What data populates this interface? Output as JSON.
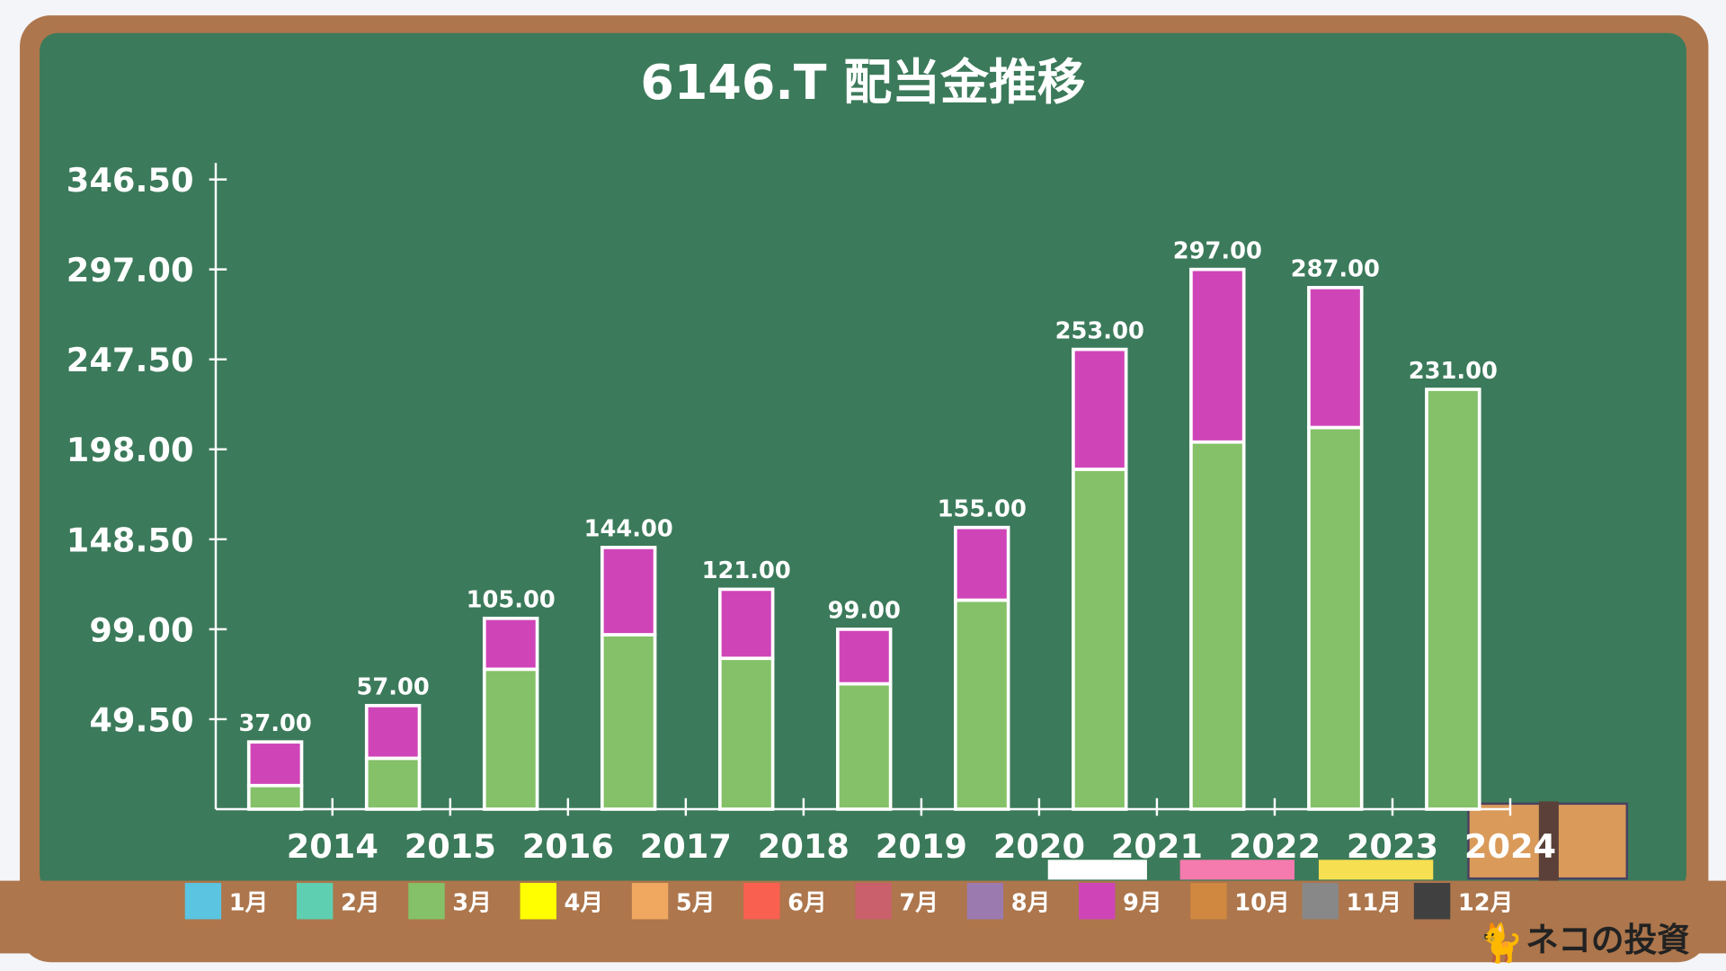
{
  "chart_data": {
    "type": "bar",
    "stacked": true,
    "title": "6146.T 配当金推移",
    "categories": [
      "2014",
      "2015",
      "2016",
      "2017",
      "2018",
      "2019",
      "2020",
      "2021",
      "2022",
      "2023",
      "2024"
    ],
    "series": [
      {
        "name": "3月",
        "color": "#84c168",
        "values": [
          13,
          28,
          77,
          96,
          83,
          69,
          115,
          187,
          202,
          210,
          231
        ]
      },
      {
        "name": "9月",
        "color": "#cf45b8",
        "values": [
          24,
          29,
          28,
          48,
          38,
          30,
          40,
          66,
          95,
          77,
          0
        ]
      }
    ],
    "totals": [
      "37.00",
      "57.00",
      "105.00",
      "144.00",
      "121.00",
      "99.00",
      "155.00",
      "253.00",
      "297.00",
      "287.00",
      "231.00"
    ],
    "yticks": [
      "49.50",
      "99.00",
      "148.50",
      "198.00",
      "247.50",
      "297.00",
      "346.50"
    ],
    "ylim": [
      0,
      346.5
    ],
    "legend_position": "bottom",
    "legend": [
      {
        "label": "1月",
        "color": "#5bc4e0"
      },
      {
        "label": "2月",
        "color": "#5ecfb0"
      },
      {
        "label": "3月",
        "color": "#84c168"
      },
      {
        "label": "4月",
        "color": "#ffff00"
      },
      {
        "label": "5月",
        "color": "#f0a860"
      },
      {
        "label": "6月",
        "color": "#f96050"
      },
      {
        "label": "7月",
        "color": "#c9606c"
      },
      {
        "label": "8月",
        "color": "#9b7ab0"
      },
      {
        "label": "9月",
        "color": "#cf45b8"
      },
      {
        "label": "10月",
        "color": "#d08840"
      },
      {
        "label": "11月",
        "color": "#888888"
      },
      {
        "label": "12月",
        "color": "#404040"
      }
    ]
  },
  "branding": "ネコの投資",
  "colors": {
    "board": "#3b7a5a",
    "frame": "#ad764c",
    "background": "#f4f5f9"
  }
}
